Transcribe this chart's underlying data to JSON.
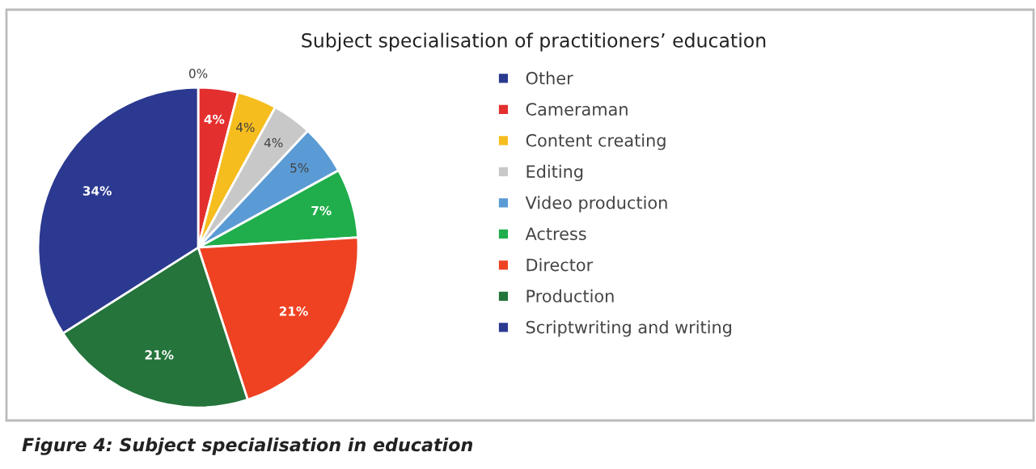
{
  "chart_data": {
    "type": "pie",
    "title": "Subject specialisation of practitioners’ education",
    "categories": [
      "Other",
      "Cameraman",
      "Content creating",
      "Editing",
      "Video production",
      "Actress",
      "Director",
      "Production",
      "Scriptwriting and writing"
    ],
    "values": [
      0,
      4,
      4,
      4,
      5,
      7,
      21,
      21,
      34
    ],
    "colors": [
      "#2a3a8f",
      "#e3302f",
      "#f6bd1e",
      "#c8c8c8",
      "#5b9bd5",
      "#1fae4b",
      "#ee4223",
      "#24743b",
      "#2b3990"
    ],
    "value_labels": [
      "0%",
      "4%",
      "4%",
      "4%",
      "5%",
      "7%",
      "21%",
      "21%",
      "34%"
    ],
    "legend": "right",
    "annotations": [
      "Figure 4: Subject specialisation in education"
    ]
  }
}
